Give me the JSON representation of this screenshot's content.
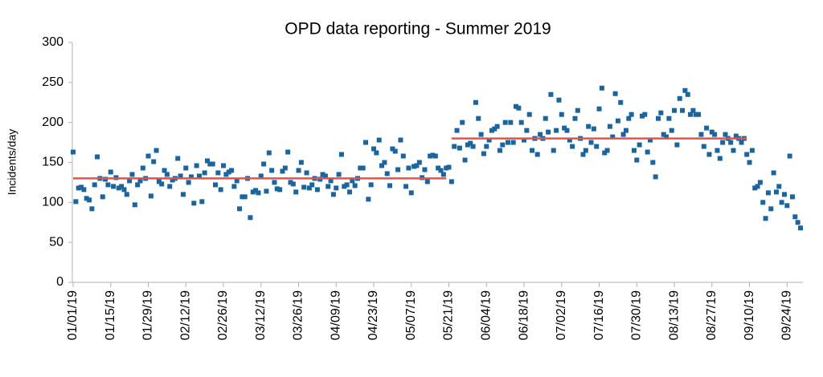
{
  "chart_data": {
    "type": "scatter",
    "title": "OPD data reporting - Summer 2019",
    "y_label": "Incidents/day",
    "categories": [
      "01/01/19",
      null,
      null,
      null,
      null,
      null,
      null,
      null,
      null,
      null,
      null,
      null,
      null,
      null,
      "01/15/19",
      null,
      null,
      null,
      null,
      null,
      null,
      null,
      null,
      null,
      null,
      null,
      null,
      null,
      "01/29/19",
      null,
      null,
      null,
      null,
      null,
      null,
      null,
      null,
      null,
      null,
      null,
      null,
      null,
      "02/12/19",
      null,
      null,
      null,
      null,
      null,
      null,
      null,
      null,
      null,
      null,
      null,
      null,
      null,
      "02/26/19",
      null,
      null,
      null,
      null,
      null,
      null,
      null,
      null,
      null,
      null,
      null,
      null,
      null,
      "03/12/19",
      null,
      null,
      null,
      null,
      null,
      null,
      null,
      null,
      null,
      null,
      null,
      null,
      null,
      "03/26/19",
      null,
      null,
      null,
      null,
      null,
      null,
      null,
      null,
      null,
      null,
      null,
      null,
      null,
      "04/09/19",
      null,
      null,
      null,
      null,
      null,
      null,
      null,
      null,
      null,
      null,
      null,
      null,
      null,
      "04/23/19",
      null,
      null,
      null,
      null,
      null,
      null,
      null,
      null,
      null,
      null,
      null,
      null,
      null,
      "05/07/19",
      null,
      null,
      null,
      null,
      null,
      null,
      null,
      null,
      null,
      null,
      null,
      null,
      null,
      "05/21/19",
      null,
      null,
      null,
      null,
      null,
      null,
      null,
      null,
      null,
      null,
      null,
      null,
      null,
      "06/04/19",
      null,
      null,
      null,
      null,
      null,
      null,
      null,
      null,
      null,
      null,
      null,
      null,
      null,
      "06/18/19",
      null,
      null,
      null,
      null,
      null,
      null,
      null,
      null,
      null,
      null,
      null,
      null,
      null,
      "07/02/19",
      null,
      null,
      null,
      null,
      null,
      null,
      null,
      null,
      null,
      null,
      null,
      null,
      null,
      "07/16/19",
      null,
      null,
      null,
      null,
      null,
      null,
      null,
      null,
      null,
      null,
      null,
      null,
      null,
      "07/30/19",
      null,
      null,
      null,
      null,
      null,
      null,
      null,
      null,
      null,
      null,
      null,
      null,
      null,
      "08/13/19",
      null,
      null,
      null,
      null,
      null,
      null,
      null,
      null,
      null,
      null,
      null,
      null,
      null,
      "08/27/19",
      null,
      null,
      null,
      null,
      null,
      null,
      null,
      null,
      null,
      null,
      null,
      null,
      null,
      "09/10/19",
      null,
      null,
      null,
      null,
      null,
      null,
      null,
      null,
      null,
      null,
      null,
      null,
      null,
      "09/24/19",
      null,
      null,
      null,
      null,
      null
    ],
    "values": [
      163,
      101,
      118,
      119,
      116,
      105,
      103,
      92,
      122,
      157,
      130,
      107,
      129,
      122,
      138,
      120,
      131,
      118,
      120,
      116,
      110,
      127,
      135,
      97,
      122,
      127,
      143,
      130,
      158,
      108,
      151,
      165,
      126,
      123,
      140,
      135,
      120,
      128,
      130,
      155,
      133,
      110,
      143,
      125,
      132,
      99,
      146,
      133,
      101,
      137,
      152,
      148,
      148,
      122,
      137,
      116,
      146,
      135,
      138,
      140,
      120,
      127,
      92,
      107,
      107,
      130,
      81,
      113,
      115,
      112,
      133,
      148,
      114,
      162,
      140,
      125,
      117,
      116,
      139,
      143,
      163,
      125,
      123,
      113,
      140,
      150,
      119,
      137,
      118,
      122,
      130,
      116,
      129,
      135,
      133,
      120,
      127,
      110,
      118,
      135,
      160,
      120,
      122,
      113,
      127,
      121,
      130,
      143,
      143,
      175,
      104,
      122,
      167,
      162,
      178,
      146,
      150,
      136,
      121,
      167,
      164,
      141,
      178,
      158,
      120,
      143,
      112,
      145,
      146,
      150,
      131,
      141,
      126,
      158,
      159,
      158,
      143,
      140,
      135,
      143,
      144,
      126,
      170,
      190,
      168,
      200,
      153,
      172,
      174,
      170,
      225,
      205,
      185,
      161,
      170,
      178,
      190,
      192,
      195,
      165,
      172,
      200,
      175,
      200,
      175,
      220,
      218,
      200,
      178,
      190,
      210,
      165,
      180,
      160,
      185,
      180,
      205,
      188,
      235,
      165,
      190,
      228,
      210,
      193,
      190,
      178,
      170,
      205,
      215,
      180,
      160,
      165,
      195,
      175,
      192,
      170,
      217,
      243,
      162,
      165,
      195,
      182,
      236,
      202,
      225,
      185,
      190,
      205,
      210,
      165,
      153,
      172,
      208,
      210,
      163,
      178,
      150,
      132,
      205,
      212,
      185,
      182,
      205,
      190,
      215,
      172,
      230,
      215,
      240,
      235,
      210,
      215,
      210,
      210,
      185,
      170,
      193,
      160,
      188,
      185,
      165,
      155,
      175,
      185,
      180,
      175,
      165,
      183,
      180,
      175,
      180,
      160,
      150,
      165,
      118,
      120,
      125,
      100,
      80,
      112,
      92,
      137,
      113,
      120,
      100,
      110,
      96,
      158,
      107,
      82,
      75,
      68
    ],
    "color": "#1a659e",
    "trend_lines": [
      {
        "start": 0,
        "end": 139,
        "value": 130
      },
      {
        "start": 141,
        "end": 251,
        "value": 180
      }
    ],
    "trend_color": "#e8504a",
    "ylim": [
      0,
      300
    ],
    "yticks": [
      0,
      50,
      100,
      150,
      200,
      250,
      300
    ],
    "grid": false
  }
}
